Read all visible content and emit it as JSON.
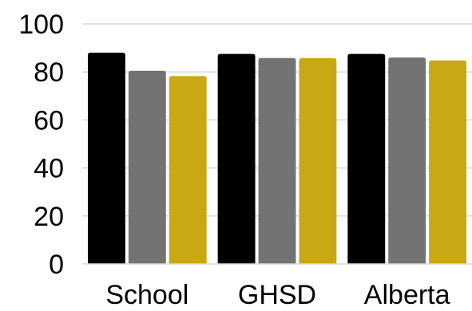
{
  "chart_data": {
    "type": "bar",
    "categories": [
      "School",
      "GHSD",
      "Alberta"
    ],
    "series": [
      {
        "values": [
          88,
          87.5,
          87.5
        ],
        "color": "#000000"
      },
      {
        "values": [
          80.5,
          85.8,
          86
        ],
        "color": "#737373"
      },
      {
        "values": [
          78.3,
          85.7,
          84.8
        ],
        "color": "#c8a815"
      }
    ],
    "y_ticks": [
      "0",
      "20",
      "40",
      "60",
      "80",
      "100"
    ],
    "ylim": [
      0,
      100
    ],
    "grid": true,
    "legend": "none"
  }
}
